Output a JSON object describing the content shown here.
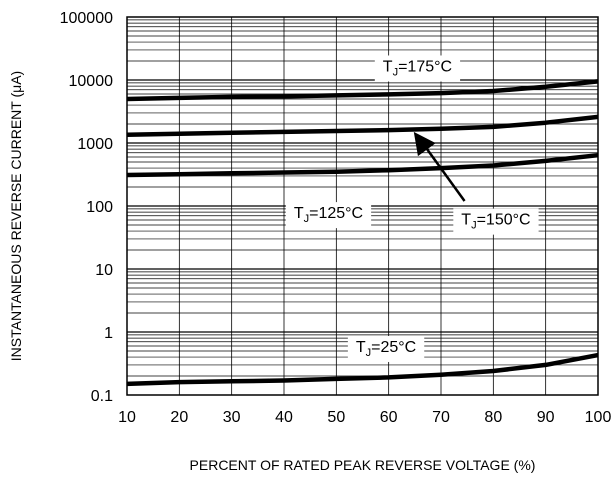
{
  "chart_data": {
    "type": "line",
    "xlabel": "PERCENT OF RATED PEAK REVERSE VOLTAGE (%)",
    "ylabel": "INSTANTANEOUS REVERSE CURRENT (μA)",
    "xlim": [
      10,
      100
    ],
    "ylim": [
      0.1,
      100000
    ],
    "yscale": "log",
    "grid": true,
    "x_ticks": [
      "10",
      "20",
      "30",
      "40",
      "50",
      "60",
      "70",
      "80",
      "90",
      "100"
    ],
    "y_ticks": [
      "0.1",
      "1",
      "10",
      "100",
      "1000",
      "10000",
      "100000"
    ],
    "series": [
      {
        "name": "TJ=175°C",
        "label_prefix": "T",
        "label_sub": "J",
        "label_suffix": "=175°C",
        "x": [
          10,
          20,
          30,
          40,
          50,
          60,
          70,
          80,
          90,
          100
        ],
        "values": [
          5000,
          5200,
          5400,
          5500,
          5700,
          5900,
          6200,
          6700,
          7800,
          9500
        ]
      },
      {
        "name": "TJ=150°C",
        "label_prefix": "T",
        "label_sub": "J",
        "label_suffix": "=150°C",
        "x": [
          10,
          20,
          30,
          40,
          50,
          60,
          70,
          80,
          90,
          100
        ],
        "values": [
          1350,
          1400,
          1450,
          1500,
          1550,
          1600,
          1680,
          1800,
          2100,
          2600
        ]
      },
      {
        "name": "TJ=125°C",
        "label_prefix": "T",
        "label_sub": "J",
        "label_suffix": "=125°C",
        "x": [
          10,
          20,
          30,
          40,
          50,
          60,
          70,
          80,
          90,
          100
        ],
        "values": [
          310,
          320,
          330,
          340,
          350,
          370,
          400,
          440,
          520,
          640
        ]
      },
      {
        "name": "TJ=25°C",
        "label_prefix": "T",
        "label_sub": "J",
        "label_suffix": "=25°C",
        "x": [
          10,
          20,
          30,
          40,
          50,
          60,
          70,
          80,
          90,
          100
        ],
        "values": [
          0.15,
          0.16,
          0.165,
          0.17,
          0.18,
          0.19,
          0.21,
          0.24,
          0.3,
          0.43
        ]
      }
    ]
  }
}
